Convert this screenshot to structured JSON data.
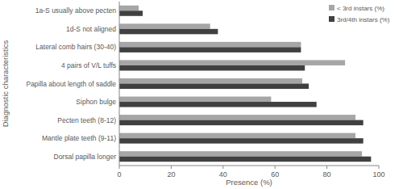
{
  "chart_data": {
    "type": "bar",
    "orientation": "horizontal",
    "x_label": "Presence (%)",
    "y_label": "Diagnostic characteristics",
    "categories": [
      "1a-S usually above pecten",
      "1d-S not aligned",
      "Lateral comb hairs (30-40)",
      "4 pairs of V/L tuffs",
      "Papilla about length of saddle",
      "Siphon bulge",
      "Pecten teeth (8-12)",
      "Mantle plate teeth (9-11)",
      "Dorsal papilla longer"
    ],
    "series": [
      {
        "name": "< 3rd instars (%)",
        "color": "#a6a6a6",
        "values": [
          7.5,
          35,
          70,
          87,
          70.5,
          58.5,
          91,
          91,
          93.5
        ]
      },
      {
        "name": "3rd/4th instars (%)",
        "color": "#404040",
        "values": [
          9,
          38,
          70,
          71.5,
          73,
          76,
          94,
          94,
          97
        ]
      }
    ],
    "xlim": [
      0,
      100
    ],
    "xticks": [
      0,
      20,
      40,
      60,
      80,
      100
    ],
    "legend": "upper right",
    "grid": false
  }
}
